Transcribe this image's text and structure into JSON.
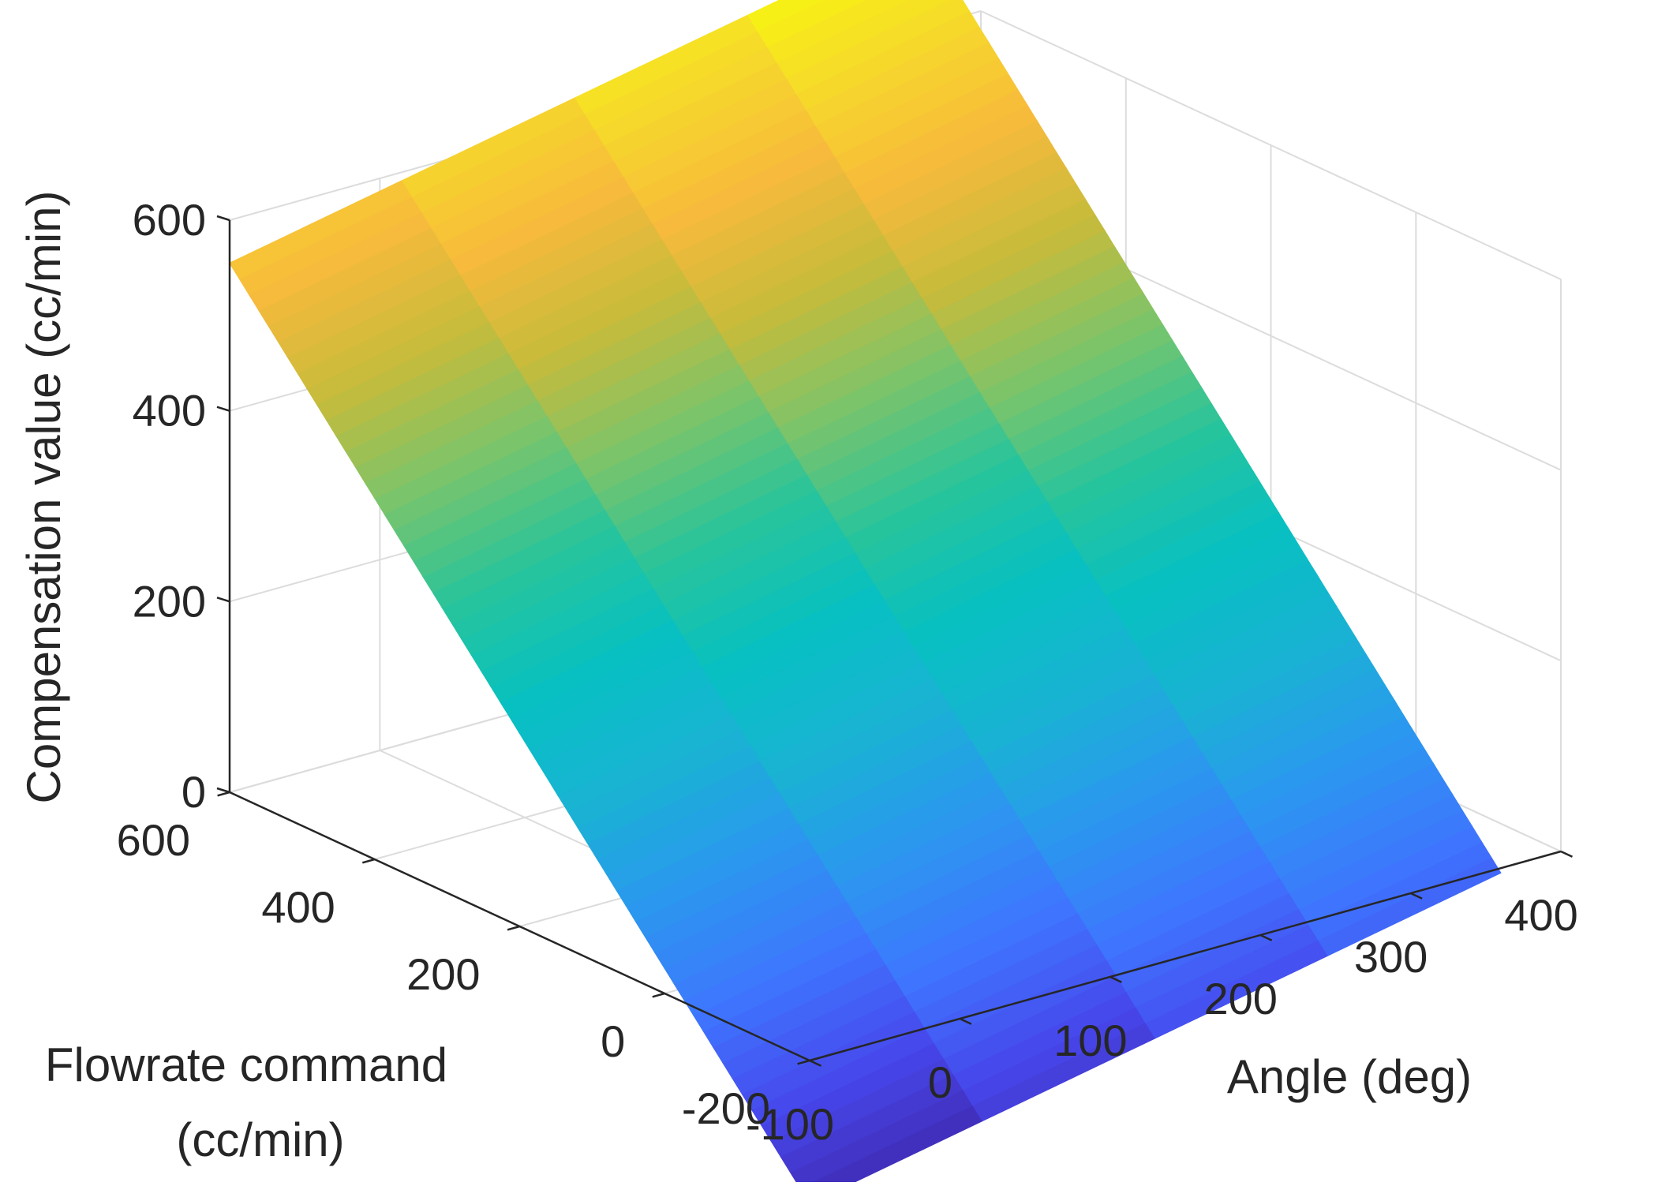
{
  "chart_data": {
    "type": "surface",
    "title": "",
    "xlabel": "Angle (deg)",
    "ylabel_lines": [
      "Flowrate command",
      "(cc/min)"
    ],
    "zlabel": "Compensation value (cc/min)",
    "x_range": [
      -100,
      400
    ],
    "y_range": [
      -200,
      600
    ],
    "z_range": [
      0,
      600
    ],
    "x_ticks": [
      "-100",
      "0",
      "100",
      "200",
      "300",
      "400"
    ],
    "y_ticks": [
      "-200",
      "0",
      "200",
      "400",
      "600"
    ],
    "z_ticks": [
      "0",
      "200",
      "400",
      "600"
    ],
    "grid": true,
    "colormap": "parula",
    "surface_x_range": [
      -100,
      360
    ],
    "surface_y_range": [
      -200,
      600
    ],
    "surface_corners": [
      {
        "x": -100,
        "y": -200,
        "z": -150
      },
      {
        "x": 360,
        "y": -200,
        "z": -5
      },
      {
        "x": -100,
        "y": 600,
        "z": 555
      },
      {
        "x": 360,
        "y": 600,
        "z": 700
      }
    ],
    "color_range_z": [
      -150,
      700
    ],
    "colormap_stops": [
      "#3e26a8",
      "#4746eb",
      "#3f74fe",
      "#2c96f0",
      "#1ab2d4",
      "#07c0c2",
      "#27c49c",
      "#7ac46b",
      "#c6bb3b",
      "#f7ba3c",
      "#f6da2a",
      "#f8fa0d"
    ]
  }
}
